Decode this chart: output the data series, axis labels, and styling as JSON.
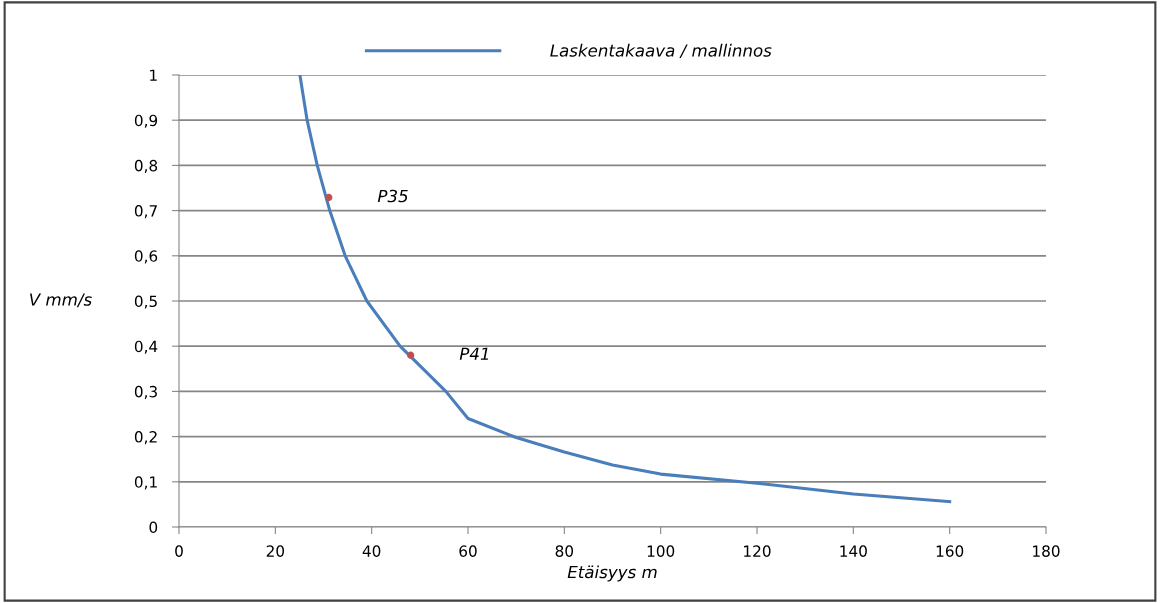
{
  "chart_data": {
    "type": "line",
    "xlabel": "Etäisyys m",
    "ylabel": "V mm/s",
    "series": [
      {
        "name": "Laskentakaava / mallinnos",
        "marker": "none",
        "color": "#4a7ebb",
        "x": [
          25.1,
          26.6,
          28.7,
          31.3,
          34.5,
          39,
          45.9,
          55.4,
          60,
          70,
          80,
          90,
          100,
          120,
          140,
          160
        ],
        "values": [
          1,
          0.9,
          0.8,
          0.7,
          0.6,
          0.5,
          0.4,
          0.3,
          0.24,
          0.198,
          0.166,
          0.137,
          0.117,
          0.097,
          0.073,
          0.056
        ]
      },
      {
        "type": "scatter",
        "marker": "circle",
        "color": "#c0504d",
        "x": [
          31.1,
          48.1
        ],
        "values": [
          0.729,
          0.38
        ]
      }
    ],
    "annotations": [
      {
        "text": "P35",
        "x": 31.1,
        "y": 0.729
      },
      {
        "text": "P41",
        "x": 48.1,
        "y": 0.38
      }
    ],
    "xlim": [
      0,
      180
    ],
    "xticks": [
      0,
      20,
      40,
      60,
      80,
      100,
      120,
      140,
      160,
      180
    ],
    "ylim": [
      0,
      1
    ],
    "yticks": [
      {
        "value": 0,
        "label": "0"
      },
      {
        "value": 0.1,
        "label": "0,1"
      },
      {
        "value": 0.2,
        "label": "0,2"
      },
      {
        "value": 0.3,
        "label": "0,3"
      },
      {
        "value": 0.4,
        "label": "0,4"
      },
      {
        "value": 0.5,
        "label": "0,5"
      },
      {
        "value": 0.6,
        "label": "0,6"
      },
      {
        "value": 0.7,
        "label": "0,7"
      },
      {
        "value": 0.8,
        "label": "0,8"
      },
      {
        "value": 0.9,
        "label": "0,9"
      },
      {
        "value": 1,
        "label": "1"
      }
    ],
    "grid": "y",
    "legend": "top",
    "line_style": "solid"
  }
}
